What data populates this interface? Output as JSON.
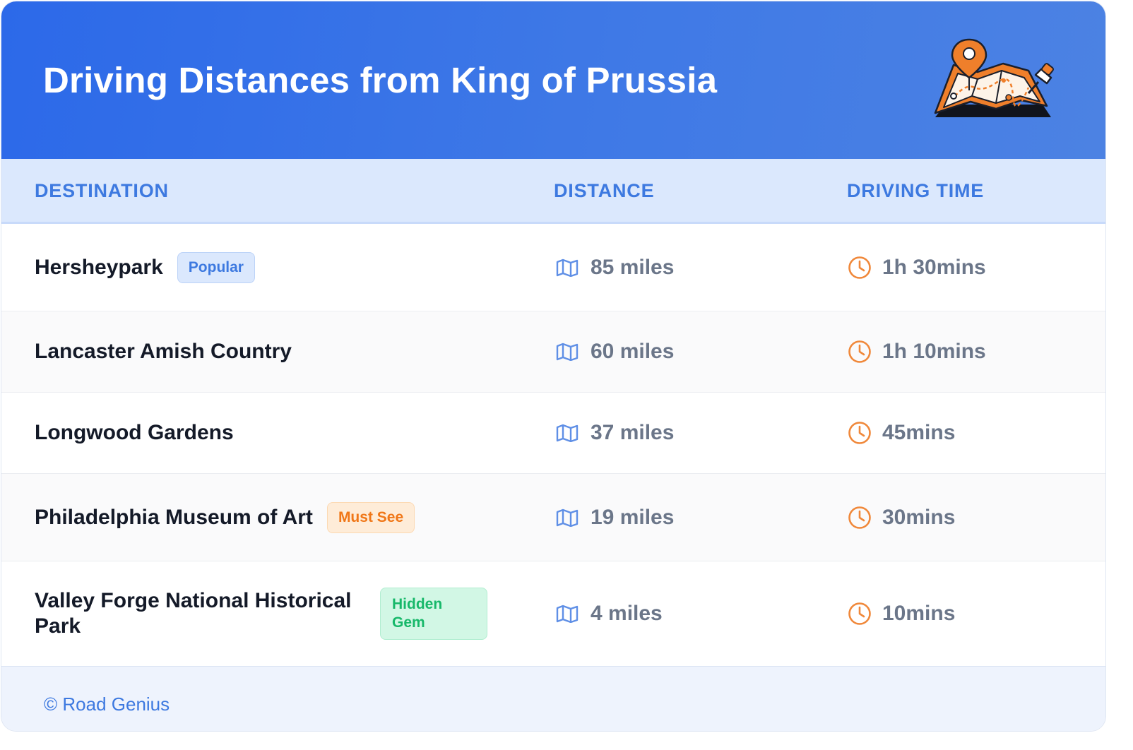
{
  "header": {
    "title": "Driving Distances from King of Prussia",
    "illustration_icon": "folded-map-with-pins-icon",
    "gradient_start": "#2c69e9",
    "gradient_end": "#4c82e3"
  },
  "table": {
    "columns": [
      "DESTINATION",
      "DISTANCE",
      "DRIVING TIME"
    ],
    "distance_icon": "map-icon",
    "time_icon": "clock-icon",
    "rows": [
      {
        "destination": "Hersheypark",
        "badge": "Popular",
        "distance": "85 miles",
        "time": "1h 30mins"
      },
      {
        "destination": "Lancaster Amish Country",
        "badge": "",
        "distance": "60 miles",
        "time": "1h 10mins"
      },
      {
        "destination": "Longwood Gardens",
        "badge": "",
        "distance": "37 miles",
        "time": "45mins"
      },
      {
        "destination": "Philadelphia Museum of Art",
        "badge": "Must See",
        "distance": "19 miles",
        "time": "30mins"
      },
      {
        "destination": "Valley Forge National Historical Park",
        "badge": "Hidden Gem",
        "distance": "4 miles",
        "time": "10mins"
      }
    ]
  },
  "colors": {
    "accent_blue": "#3d79e0",
    "clock_orange": "#f0883a",
    "popular_badge": "#dbe8fd",
    "must_see_badge": "#feecd8",
    "hidden_gem_badge": "#d2f7e5"
  },
  "footer": {
    "text": "© Road Genius"
  }
}
